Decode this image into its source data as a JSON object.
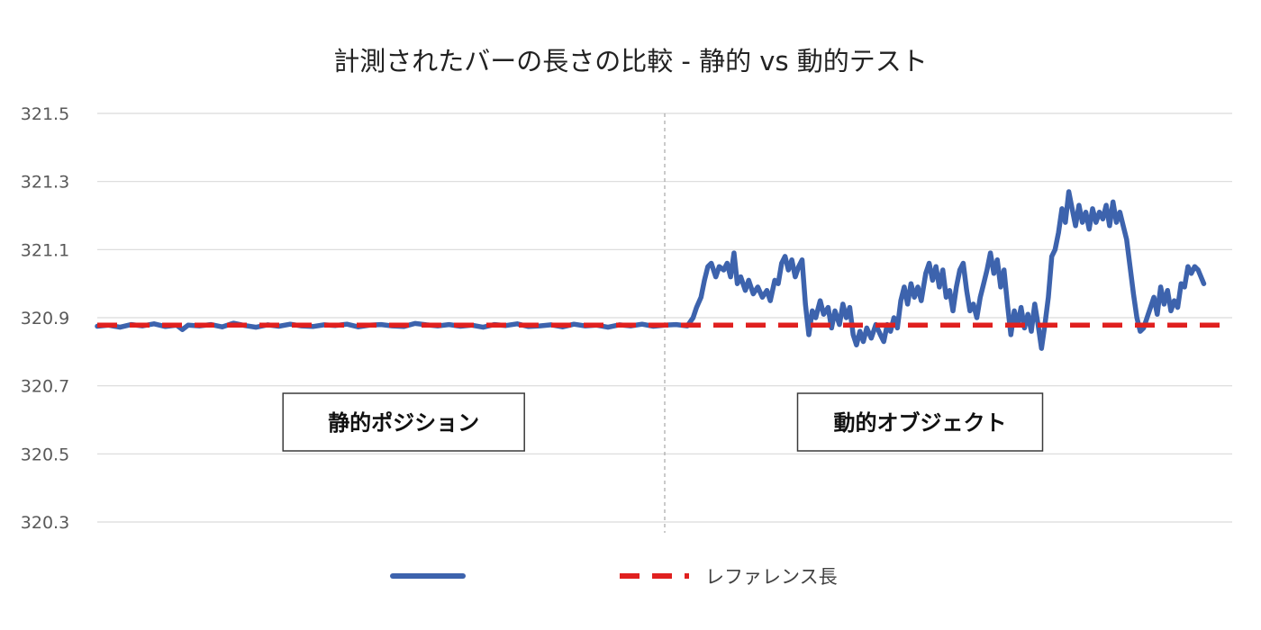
{
  "chart_data": {
    "type": "line",
    "title": "計測されたバーの長さの比較 - 静的 vs 動的テスト",
    "xlabel": "",
    "ylabel": "",
    "ylim": [
      320.3,
      321.5
    ],
    "yticks": [
      "321.5",
      "321.3",
      "321.1",
      "320.9",
      "320.7",
      "320.5",
      "320.3"
    ],
    "ytick_values": [
      321.5,
      321.3,
      321.1,
      320.9,
      320.7,
      320.5,
      320.3
    ],
    "x_range": [
      0,
      1000
    ],
    "grid": "horizontal",
    "legend_placement": "bottom",
    "divider_x": 500,
    "annotations": [
      {
        "text": "静的ポジション",
        "x": 270
      },
      {
        "text": "動的オブジェクト",
        "x": 725
      }
    ],
    "series": [
      {
        "name": "",
        "color": "#3d63ad",
        "style": "solid",
        "points": [
          [
            0,
            320.875
          ],
          [
            10,
            320.878
          ],
          [
            20,
            320.872
          ],
          [
            30,
            320.88
          ],
          [
            40,
            320.876
          ],
          [
            50,
            320.882
          ],
          [
            60,
            320.874
          ],
          [
            70,
            320.878
          ],
          [
            75,
            320.865
          ],
          [
            80,
            320.878
          ],
          [
            90,
            320.876
          ],
          [
            100,
            320.88
          ],
          [
            110,
            320.873
          ],
          [
            120,
            320.884
          ],
          [
            130,
            320.877
          ],
          [
            140,
            320.872
          ],
          [
            150,
            320.879
          ],
          [
            160,
            320.875
          ],
          [
            170,
            320.881
          ],
          [
            180,
            320.876
          ],
          [
            190,
            320.874
          ],
          [
            200,
            320.879
          ],
          [
            210,
            320.877
          ],
          [
            220,
            320.881
          ],
          [
            230,
            320.873
          ],
          [
            240,
            320.878
          ],
          [
            250,
            320.88
          ],
          [
            260,
            320.876
          ],
          [
            270,
            320.874
          ],
          [
            280,
            320.883
          ],
          [
            290,
            320.879
          ],
          [
            300,
            320.876
          ],
          [
            310,
            320.88
          ],
          [
            320,
            320.875
          ],
          [
            330,
            320.878
          ],
          [
            340,
            320.872
          ],
          [
            350,
            320.88
          ],
          [
            360,
            320.877
          ],
          [
            370,
            320.882
          ],
          [
            380,
            320.874
          ],
          [
            390,
            320.876
          ],
          [
            400,
            320.879
          ],
          [
            410,
            320.873
          ],
          [
            420,
            320.881
          ],
          [
            430,
            320.876
          ],
          [
            440,
            320.878
          ],
          [
            450,
            320.872
          ],
          [
            460,
            320.879
          ],
          [
            470,
            320.876
          ],
          [
            480,
            320.881
          ],
          [
            490,
            320.875
          ],
          [
            500,
            320.878
          ],
          [
            510,
            320.88
          ],
          [
            520,
            320.876
          ],
          [
            525,
            320.9
          ],
          [
            528,
            320.93
          ],
          [
            532,
            320.96
          ],
          [
            535,
            321.01
          ],
          [
            538,
            321.05
          ],
          [
            541,
            321.06
          ],
          [
            545,
            321.02
          ],
          [
            548,
            321.05
          ],
          [
            552,
            321.04
          ],
          [
            555,
            321.06
          ],
          [
            558,
            321.02
          ],
          [
            561,
            321.09
          ],
          [
            564,
            321.0
          ],
          [
            567,
            321.02
          ],
          [
            571,
            320.98
          ],
          [
            574,
            321.01
          ],
          [
            578,
            320.97
          ],
          [
            582,
            320.99
          ],
          [
            586,
            320.96
          ],
          [
            590,
            320.98
          ],
          [
            593,
            320.95
          ],
          [
            597,
            321.01
          ],
          [
            600,
            321.0
          ],
          [
            603,
            321.06
          ],
          [
            606,
            321.08
          ],
          [
            609,
            321.04
          ],
          [
            612,
            321.07
          ],
          [
            615,
            321.02
          ],
          [
            618,
            321.05
          ],
          [
            621,
            321.07
          ],
          [
            624,
            320.94
          ],
          [
            627,
            320.85
          ],
          [
            630,
            320.92
          ],
          [
            633,
            320.9
          ],
          [
            637,
            320.95
          ],
          [
            640,
            320.91
          ],
          [
            644,
            320.93
          ],
          [
            647,
            320.87
          ],
          [
            650,
            320.92
          ],
          [
            654,
            320.88
          ],
          [
            657,
            320.94
          ],
          [
            660,
            320.9
          ],
          [
            663,
            320.93
          ],
          [
            666,
            320.85
          ],
          [
            669,
            320.82
          ],
          [
            672,
            320.86
          ],
          [
            675,
            320.83
          ],
          [
            678,
            320.87
          ],
          [
            682,
            320.84
          ],
          [
            686,
            320.88
          ],
          [
            690,
            320.85
          ],
          [
            693,
            320.83
          ],
          [
            696,
            320.88
          ],
          [
            699,
            320.86
          ],
          [
            702,
            320.9
          ],
          [
            705,
            320.87
          ],
          [
            708,
            320.95
          ],
          [
            711,
            320.99
          ],
          [
            714,
            320.94
          ],
          [
            717,
            321.0
          ],
          [
            720,
            320.96
          ],
          [
            723,
            320.99
          ],
          [
            726,
            320.95
          ],
          [
            730,
            321.03
          ],
          [
            733,
            321.06
          ],
          [
            736,
            321.01
          ],
          [
            739,
            321.05
          ],
          [
            742,
            320.99
          ],
          [
            745,
            321.04
          ],
          [
            748,
            320.96
          ],
          [
            751,
            320.98
          ],
          [
            754,
            320.92
          ],
          [
            757,
            320.99
          ],
          [
            760,
            321.04
          ],
          [
            763,
            321.06
          ],
          [
            766,
            320.98
          ],
          [
            769,
            320.92
          ],
          [
            772,
            320.94
          ],
          [
            775,
            320.9
          ],
          [
            778,
            320.96
          ],
          [
            781,
            321.0
          ],
          [
            784,
            321.04
          ],
          [
            787,
            321.09
          ],
          [
            790,
            321.03
          ],
          [
            793,
            321.07
          ],
          [
            796,
            320.99
          ],
          [
            799,
            321.04
          ],
          [
            802,
            320.94
          ],
          [
            805,
            320.85
          ],
          [
            808,
            320.92
          ],
          [
            811,
            320.88
          ],
          [
            814,
            320.93
          ],
          [
            817,
            320.87
          ],
          [
            820,
            320.91
          ],
          [
            823,
            320.86
          ],
          [
            826,
            320.94
          ],
          [
            829,
            320.88
          ],
          [
            832,
            320.81
          ],
          [
            835,
            320.88
          ],
          [
            838,
            320.96
          ],
          [
            841,
            321.08
          ],
          [
            844,
            321.1
          ],
          [
            847,
            321.15
          ],
          [
            850,
            321.22
          ],
          [
            853,
            321.18
          ],
          [
            856,
            321.27
          ],
          [
            859,
            321.22
          ],
          [
            862,
            321.17
          ],
          [
            865,
            321.23
          ],
          [
            868,
            321.18
          ],
          [
            871,
            321.21
          ],
          [
            874,
            321.16
          ],
          [
            877,
            321.22
          ],
          [
            880,
            321.18
          ],
          [
            883,
            321.21
          ],
          [
            886,
            321.19
          ],
          [
            889,
            321.23
          ],
          [
            892,
            321.17
          ],
          [
            895,
            321.24
          ],
          [
            898,
            321.18
          ],
          [
            901,
            321.21
          ],
          [
            904,
            321.17
          ],
          [
            907,
            321.13
          ],
          [
            910,
            321.05
          ],
          [
            913,
            320.97
          ],
          [
            916,
            320.9
          ],
          [
            919,
            320.86
          ],
          [
            922,
            320.87
          ],
          [
            925,
            320.9
          ],
          [
            928,
            320.93
          ],
          [
            931,
            320.96
          ],
          [
            934,
            320.91
          ],
          [
            937,
            320.99
          ],
          [
            940,
            320.94
          ],
          [
            943,
            320.98
          ],
          [
            946,
            320.92
          ],
          [
            949,
            320.95
          ],
          [
            952,
            320.93
          ],
          [
            955,
            321.0
          ],
          [
            958,
            320.99
          ],
          [
            961,
            321.05
          ],
          [
            964,
            321.03
          ],
          [
            967,
            321.05
          ],
          [
            970,
            321.04
          ],
          [
            975,
            321.0
          ]
        ]
      },
      {
        "name": "レファレンス長",
        "color": "#e0201f",
        "style": "dashed",
        "points": [
          [
            0,
            320.878
          ],
          [
            1000,
            320.878
          ]
        ]
      }
    ]
  }
}
